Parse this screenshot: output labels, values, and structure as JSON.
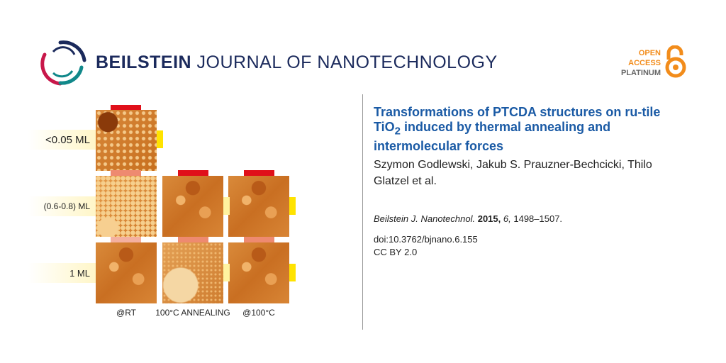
{
  "header": {
    "brand_bold": "BEILSTEIN",
    "brand_rest": "JOURNAL OF NANOTECHNOLOGY",
    "open_access": [
      "OPEN",
      "ACCESS",
      "PLATINUM"
    ],
    "colors": {
      "brand": "#1b2a5c",
      "accent": "#f28c1b"
    }
  },
  "figure": {
    "row_labels": [
      "<0.05 ML",
      "(0.6-0.8) ML",
      "1 ML"
    ],
    "col_labels": [
      "@RT",
      "100°C ANNEALING",
      "@100°C"
    ]
  },
  "article": {
    "title_pre": "Transformations of PTCDA structures on ru-tile TiO",
    "title_sub": "2",
    "title_post": " induced by thermal annealing and intermolecular forces",
    "authors": "Szymon Godlewski, Jakub S. Prauzner-Bechcicki, Thilo Glatzel et al.",
    "journal": "Beilstein J. Nanotechnol.",
    "year": "2015,",
    "volume": "6,",
    "pages": "1498–1507.",
    "doi": "doi:10.3762/bjnano.6.155",
    "license": "CC BY 2.0"
  }
}
